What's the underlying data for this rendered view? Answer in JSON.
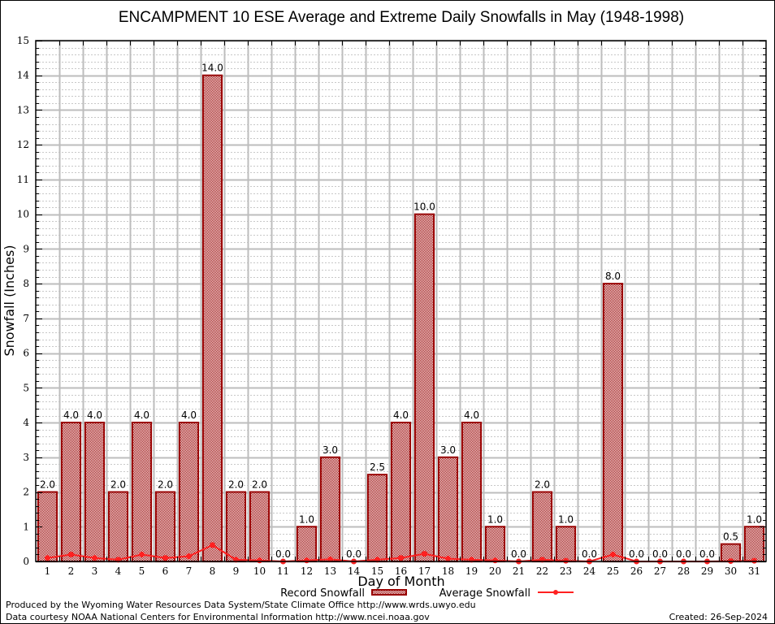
{
  "chart_data": {
    "type": "bar",
    "title": "ENCAMPMENT 10 ESE Average and Extreme Daily Snowfalls in May (1948-1998)",
    "xlabel": "Day of Month",
    "ylabel": "Snowfall (Inches)",
    "ylim": [
      0,
      15
    ],
    "yticks": [
      0,
      1,
      2,
      3,
      4,
      5,
      6,
      7,
      8,
      9,
      10,
      11,
      12,
      13,
      14,
      15
    ],
    "grid": true,
    "categories": [
      "1",
      "2",
      "3",
      "4",
      "5",
      "6",
      "7",
      "8",
      "9",
      "10",
      "11",
      "12",
      "13",
      "14",
      "15",
      "16",
      "17",
      "18",
      "19",
      "20",
      "21",
      "22",
      "23",
      "24",
      "25",
      "26",
      "27",
      "28",
      "29",
      "30",
      "31"
    ],
    "series": [
      {
        "name": "Record Snowfall",
        "type": "bar",
        "color": "#990000",
        "values": [
          2.0,
          4.0,
          4.0,
          2.0,
          4.0,
          2.0,
          4.0,
          14.0,
          2.0,
          2.0,
          0.0,
          1.0,
          3.0,
          0.0,
          2.5,
          4.0,
          10.0,
          3.0,
          4.0,
          1.0,
          0.0,
          2.0,
          1.0,
          0.0,
          8.0,
          0.0,
          0.0,
          0.0,
          0.0,
          0.5,
          1.0
        ],
        "labels": [
          "2.0",
          "4.0",
          "4.0",
          "2.0",
          "4.0",
          "2.0",
          "4.0",
          "14.0",
          "2.0",
          "2.0",
          "0.0",
          "1.0",
          "3.0",
          "0.0",
          "2.5",
          "4.0",
          "10.0",
          "3.0",
          "4.0",
          "1.0",
          "0.0",
          "2.0",
          "1.0",
          "0.0",
          "8.0",
          "0.0",
          "0.0",
          "0.0",
          "0.0",
          "0.5",
          "1.0"
        ]
      },
      {
        "name": "Average Snowfall",
        "type": "line",
        "color": "#ff2020",
        "values": [
          0.1,
          0.2,
          0.1,
          0.05,
          0.2,
          0.1,
          0.15,
          0.47,
          0.05,
          0.03,
          0.0,
          0.03,
          0.06,
          0.0,
          0.05,
          0.1,
          0.22,
          0.08,
          0.05,
          0.03,
          0.0,
          0.05,
          0.02,
          0.0,
          0.2,
          0.0,
          0.0,
          0.0,
          0.0,
          0.01,
          0.02
        ]
      }
    ],
    "legend": {
      "placement": "bottom-center",
      "items": [
        "Record Snowfall",
        "Average Snowfall"
      ]
    }
  },
  "footer": {
    "produced_by": "Produced by the Wyoming Water Resources Data System/State Climate Office http://www.wrds.uwyo.edu",
    "data_courtesy": "Data courtesy NOAA National Centers for Environmental Information http://www.ncei.noaa.gov",
    "created": "Created: 26-Sep-2024"
  }
}
